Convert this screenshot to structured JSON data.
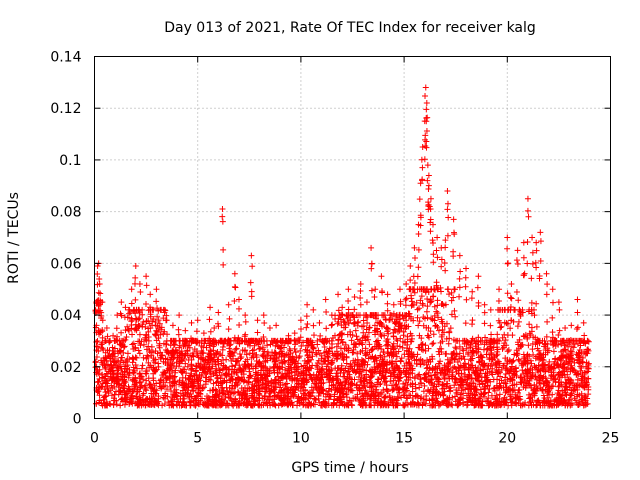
{
  "chart_data": {
    "type": "scatter",
    "title": "Day 013 of 2021, Rate Of TEC Index for receiver kalg",
    "xlabel": "GPS time / hours",
    "ylabel": "ROTI / TECUs",
    "xlim": [
      0,
      25
    ],
    "ylim": [
      0,
      0.14
    ],
    "xticks": [
      0,
      5,
      10,
      15,
      20,
      25
    ],
    "yticks": [
      0,
      0.02,
      0.04,
      0.06,
      0.08,
      0.1,
      0.12,
      0.14
    ],
    "xtick_labels": [
      "0",
      "5",
      "10",
      "15",
      "20",
      "25"
    ],
    "ytick_labels": [
      "0",
      "0.02",
      "0.04",
      "0.06",
      "0.08",
      "0.1",
      "0.12",
      "0.14"
    ],
    "grid": true,
    "marker": "+",
    "color": "#ff0000",
    "series": [
      {
        "name": "ROTI",
        "points": [
          [
            0.1,
            0.036
          ],
          [
            0.15,
            0.059
          ],
          [
            0.2,
            0.06
          ],
          [
            0.25,
            0.052
          ],
          [
            0.3,
            0.045
          ],
          [
            0.4,
            0.038
          ],
          [
            0.6,
            0.035
          ],
          [
            0.9,
            0.032
          ],
          [
            1.1,
            0.04
          ],
          [
            1.3,
            0.045
          ],
          [
            1.5,
            0.043
          ],
          [
            1.8,
            0.05
          ],
          [
            2.0,
            0.059
          ],
          [
            2.2,
            0.052
          ],
          [
            2.5,
            0.055
          ],
          [
            2.7,
            0.048
          ],
          [
            3.0,
            0.05
          ],
          [
            3.2,
            0.042
          ],
          [
            3.5,
            0.038
          ],
          [
            3.8,
            0.036
          ],
          [
            4.1,
            0.04
          ],
          [
            4.4,
            0.034
          ],
          [
            4.7,
            0.037
          ],
          [
            5.0,
            0.038
          ],
          [
            5.3,
            0.033
          ],
          [
            5.6,
            0.043
          ],
          [
            5.8,
            0.035
          ],
          [
            6.0,
            0.041
          ],
          [
            6.2,
            0.081
          ],
          [
            6.5,
            0.044
          ],
          [
            6.8,
            0.056
          ],
          [
            7.0,
            0.046
          ],
          [
            7.3,
            0.04
          ],
          [
            7.6,
            0.063
          ],
          [
            7.9,
            0.038
          ],
          [
            8.2,
            0.04
          ],
          [
            8.5,
            0.035
          ],
          [
            8.8,
            0.036
          ],
          [
            9.1,
            0.03
          ],
          [
            9.4,
            0.032
          ],
          [
            9.7,
            0.033
          ],
          [
            10.0,
            0.038
          ],
          [
            10.3,
            0.044
          ],
          [
            10.6,
            0.042
          ],
          [
            10.9,
            0.037
          ],
          [
            11.2,
            0.046
          ],
          [
            11.5,
            0.04
          ],
          [
            11.8,
            0.048
          ],
          [
            12.0,
            0.043
          ],
          [
            12.3,
            0.05
          ],
          [
            12.6,
            0.047
          ],
          [
            12.9,
            0.052
          ],
          [
            13.2,
            0.045
          ],
          [
            13.4,
            0.066
          ],
          [
            13.6,
            0.05
          ],
          [
            13.9,
            0.055
          ],
          [
            14.2,
            0.048
          ],
          [
            14.5,
            0.044
          ],
          [
            14.8,
            0.05
          ],
          [
            15.1,
            0.052
          ],
          [
            15.3,
            0.059
          ],
          [
            15.5,
            0.066
          ],
          [
            15.7,
            0.075
          ],
          [
            15.8,
            0.091
          ],
          [
            15.9,
            0.105
          ],
          [
            16.0,
            0.115
          ],
          [
            16.05,
            0.128
          ],
          [
            16.1,
            0.122
          ],
          [
            16.15,
            0.098
          ],
          [
            16.2,
            0.094
          ],
          [
            16.3,
            0.085
          ],
          [
            16.4,
            0.075
          ],
          [
            16.6,
            0.07
          ],
          [
            16.8,
            0.066
          ],
          [
            17.0,
            0.069
          ],
          [
            17.1,
            0.088
          ],
          [
            17.4,
            0.077
          ],
          [
            17.7,
            0.063
          ],
          [
            18.0,
            0.058
          ],
          [
            18.3,
            0.049
          ],
          [
            18.6,
            0.055
          ],
          [
            18.9,
            0.044
          ],
          [
            19.2,
            0.042
          ],
          [
            19.6,
            0.05
          ],
          [
            20.0,
            0.07
          ],
          [
            20.2,
            0.052
          ],
          [
            20.5,
            0.065
          ],
          [
            20.8,
            0.068
          ],
          [
            21.0,
            0.085
          ],
          [
            21.2,
            0.07
          ],
          [
            21.4,
            0.068
          ],
          [
            21.6,
            0.072
          ],
          [
            21.9,
            0.056
          ],
          [
            22.2,
            0.05
          ],
          [
            22.5,
            0.045
          ],
          [
            22.8,
            0.035
          ],
          [
            23.1,
            0.036
          ],
          [
            23.4,
            0.046
          ],
          [
            23.7,
            0.037
          ],
          [
            23.9,
            0.03
          ]
        ],
        "baseline_band": [
          0.005,
          0.03
        ]
      }
    ]
  }
}
